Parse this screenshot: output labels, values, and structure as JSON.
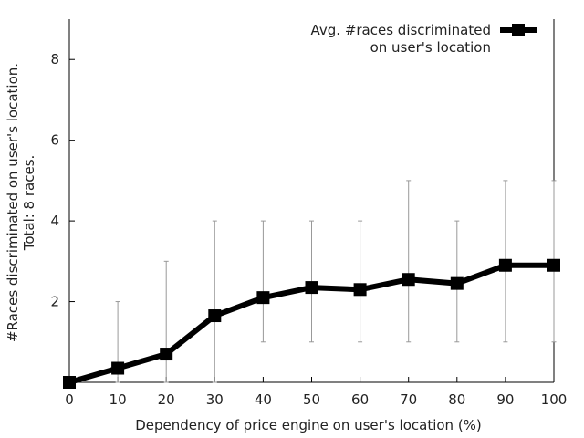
{
  "chart_data": {
    "type": "line",
    "title": "",
    "xlabel": "Dependency of price engine on user's location (%)",
    "ylabel_lines": [
      "#Races discriminated on user's location.",
      "Total: 8 races."
    ],
    "x": [
      0,
      10,
      20,
      30,
      40,
      50,
      60,
      70,
      80,
      90,
      100
    ],
    "xlim": [
      0,
      100
    ],
    "ylim": [
      0,
      9
    ],
    "x_ticks": [
      "0",
      "10",
      "20",
      "30",
      "40",
      "50",
      "60",
      "70",
      "80",
      "90",
      "100"
    ],
    "y_ticks": [
      "2",
      "4",
      "6",
      "8"
    ],
    "y_tick_values": [
      2,
      4,
      6,
      8
    ],
    "grid": false,
    "legend_position": "top-right",
    "series": [
      {
        "name_lines": [
          "Avg. #races discriminated",
          "on user's location"
        ],
        "color": "#000000",
        "values": [
          0,
          0.35,
          0.7,
          1.65,
          2.1,
          2.35,
          2.3,
          2.55,
          2.45,
          2.9,
          2.9
        ],
        "error_low": [
          0,
          0,
          0,
          0,
          1,
          1,
          1,
          1,
          1,
          1,
          1
        ],
        "error_high": [
          0,
          2,
          3,
          4,
          4,
          4,
          4,
          5,
          4,
          5,
          5
        ],
        "error_color": "#999999"
      }
    ]
  }
}
